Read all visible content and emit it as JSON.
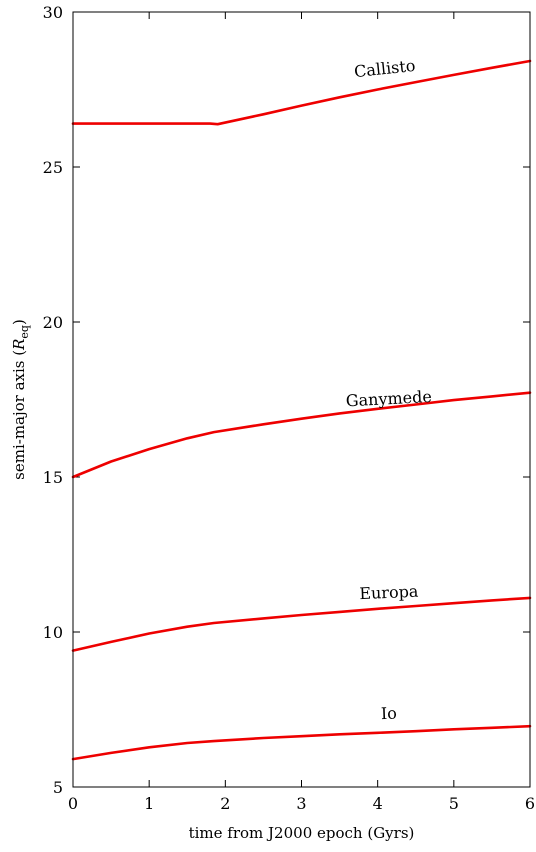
{
  "chart_data": {
    "type": "line",
    "title": "",
    "xlabel": "time from J2000 epoch (Gyrs)",
    "ylabel_main": "semi-major axis (",
    "ylabel_symbol": "R",
    "ylabel_subscript": "eq",
    "ylabel_close": ")",
    "xlim": [
      0,
      6
    ],
    "ylim": [
      5,
      30
    ],
    "xticks": [
      0,
      1,
      2,
      3,
      4,
      5,
      6
    ],
    "yticks": [
      5,
      10,
      15,
      20,
      25,
      30
    ],
    "grid": false,
    "legend": "none",
    "line_color": "#ee0000",
    "series": [
      {
        "name": "Io",
        "label_at": [
          4.15,
          7.2
        ],
        "label_angle": -2,
        "x": [
          0,
          0.5,
          1,
          1.5,
          1.85,
          2.5,
          3,
          3.5,
          4,
          4.5,
          5,
          5.5,
          6
        ],
        "y": [
          5.9,
          6.1,
          6.28,
          6.42,
          6.48,
          6.58,
          6.64,
          6.7,
          6.75,
          6.8,
          6.86,
          6.91,
          6.96
        ]
      },
      {
        "name": "Europa",
        "label_at": [
          4.15,
          11.1
        ],
        "label_angle": -2.5,
        "x": [
          0,
          0.5,
          1,
          1.5,
          1.85,
          2.5,
          3,
          3.5,
          4,
          4.5,
          5,
          5.5,
          6
        ],
        "y": [
          9.4,
          9.68,
          9.95,
          10.17,
          10.29,
          10.44,
          10.55,
          10.65,
          10.75,
          10.84,
          10.93,
          11.02,
          11.1
        ]
      },
      {
        "name": "Ganymede",
        "label_at": [
          4.15,
          17.35
        ],
        "label_angle": -3,
        "x": [
          0,
          0.5,
          1,
          1.5,
          1.85,
          2.5,
          3,
          3.5,
          4,
          4.5,
          5,
          5.5,
          6
        ],
        "y": [
          15.0,
          15.5,
          15.9,
          16.25,
          16.45,
          16.7,
          16.88,
          17.05,
          17.2,
          17.34,
          17.48,
          17.6,
          17.72
        ]
      },
      {
        "name": "Callisto",
        "label_at": [
          4.1,
          28.0
        ],
        "label_angle": -6,
        "x": [
          0,
          0.5,
          1,
          1.5,
          1.8,
          1.9,
          2.5,
          3,
          3.5,
          4,
          4.5,
          5,
          5.5,
          6
        ],
        "y": [
          26.4,
          26.4,
          26.4,
          26.4,
          26.4,
          26.38,
          26.7,
          26.98,
          27.25,
          27.5,
          27.74,
          27.97,
          28.2,
          28.42
        ]
      }
    ]
  }
}
